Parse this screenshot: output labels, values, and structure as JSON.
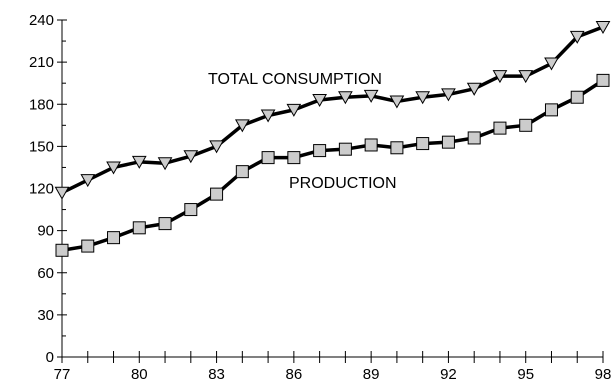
{
  "chart_data": {
    "type": "line",
    "title": "",
    "xlabel": "",
    "ylabel": "",
    "x": [
      77,
      78,
      79,
      80,
      81,
      82,
      83,
      84,
      85,
      86,
      87,
      88,
      89,
      90,
      91,
      92,
      93,
      94,
      95,
      96,
      97,
      98
    ],
    "xlim": [
      77,
      98
    ],
    "ylim": [
      0,
      240
    ],
    "x_ticks": [
      "77",
      "80",
      "83",
      "86",
      "89",
      "92",
      "95",
      "98"
    ],
    "y_ticks": [
      "0",
      "30",
      "60",
      "90",
      "120",
      "150",
      "180",
      "210",
      "240"
    ],
    "grid": false,
    "legend": "none",
    "series": [
      {
        "name": "TOTAL CONSUMPTION",
        "marker": "triangle-down",
        "values": [
          117,
          126,
          135,
          139,
          138,
          143,
          150,
          165,
          172,
          176,
          183,
          185,
          186,
          182,
          185,
          187,
          191,
          200,
          200,
          209,
          228,
          235
        ]
      },
      {
        "name": "PRODUCTION",
        "marker": "square",
        "values": [
          76,
          79,
          85,
          92,
          95,
          105,
          116,
          132,
          142,
          142,
          147,
          148,
          151,
          149,
          152,
          153,
          156,
          163,
          165,
          176,
          185,
          197
        ]
      }
    ],
    "colors": {
      "line": "#000000",
      "marker_fill": "#cccccc",
      "marker_stroke": "#000000"
    }
  }
}
